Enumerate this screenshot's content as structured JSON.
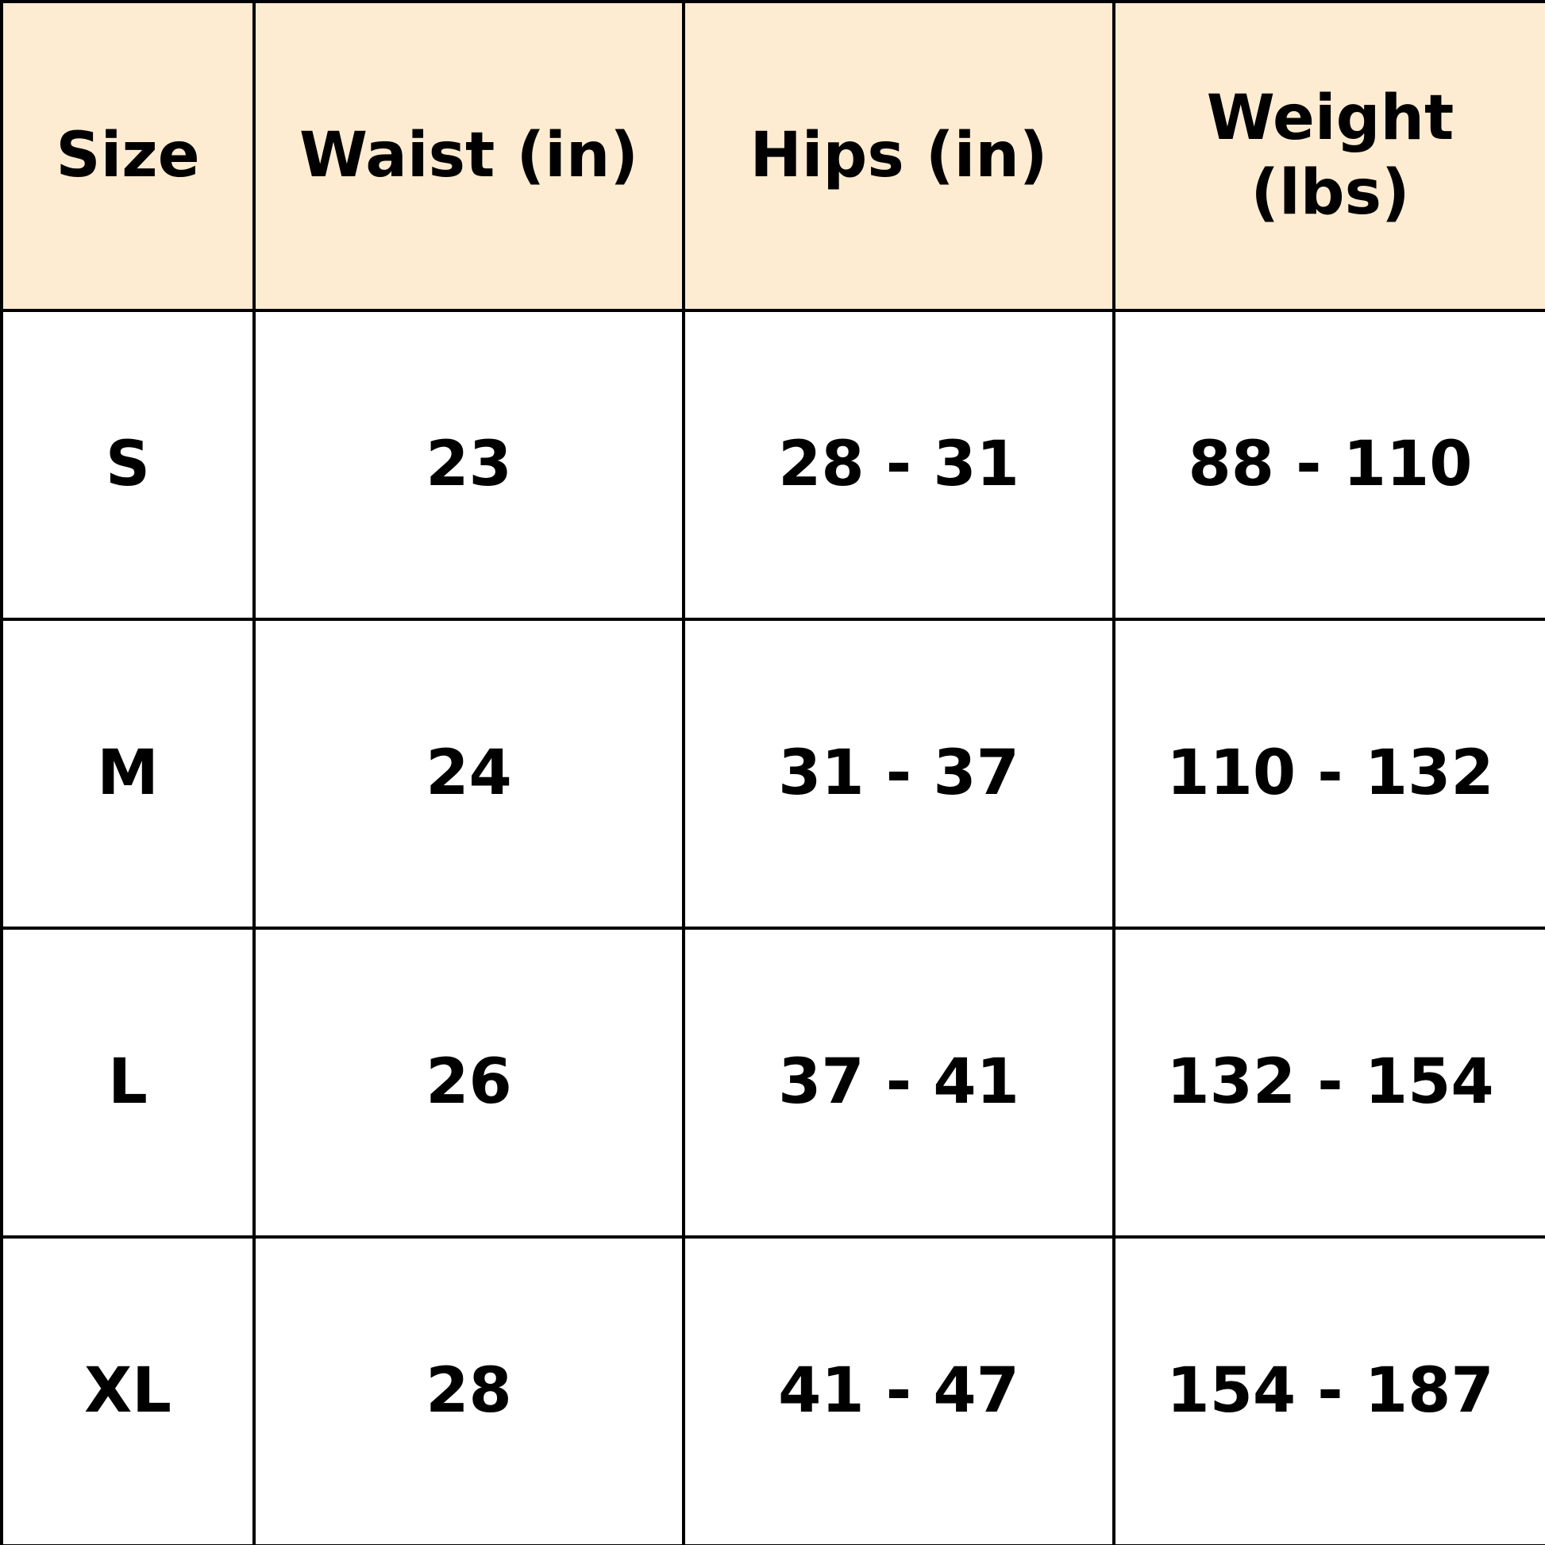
{
  "table": {
    "header": [
      "Size",
      "Waist (in)",
      "Hips (in)",
      "Weight (lbs)"
    ],
    "rows": [
      [
        "S",
        "23",
        "28 - 31",
        "88 - 110"
      ],
      [
        "M",
        "24",
        "31 - 37",
        "110 - 132"
      ],
      [
        "L",
        "26",
        "37 - 41",
        "132 - 154"
      ],
      [
        "XL",
        "28",
        "41 - 47",
        "154 - 187"
      ]
    ]
  }
}
